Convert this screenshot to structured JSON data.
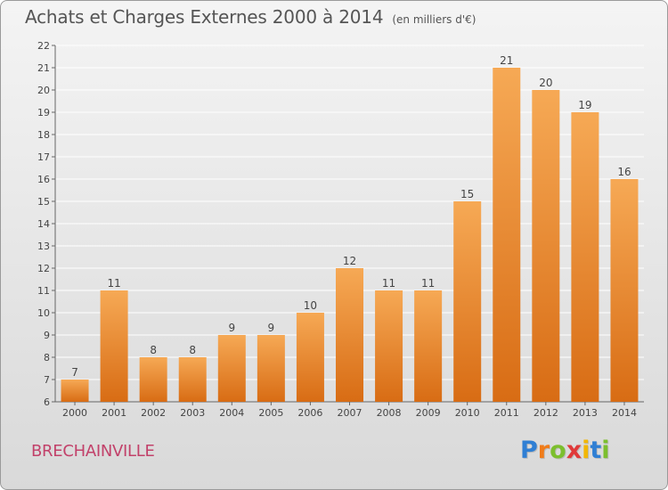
{
  "title": "Achats et Charges Externes 2000 à 2014",
  "unit": "(en milliers d'€)",
  "town": "BRECHAINVILLE",
  "logo": {
    "letters": [
      "P",
      "r",
      "o",
      "x",
      "i",
      "t",
      "i"
    ],
    "colors": [
      "#2f7fd4",
      "#f07c1a",
      "#7cbf2e",
      "#e03a3a",
      "#f2b705",
      "#2f7fd4",
      "#7cbf2e"
    ]
  },
  "colors": {
    "bar_light": "#f6a955",
    "bar_dark": "#d86c14",
    "grid": "#ffffff"
  },
  "chart_data": {
    "type": "bar",
    "categories": [
      "2000",
      "2001",
      "2002",
      "2003",
      "2004",
      "2005",
      "2006",
      "2007",
      "2008",
      "2009",
      "2010",
      "2011",
      "2012",
      "2013",
      "2014"
    ],
    "values": [
      7,
      11,
      8,
      8,
      9,
      9,
      10,
      12,
      11,
      11,
      15,
      21,
      20,
      19,
      16
    ],
    "data_labels": [
      "7",
      "11",
      "8",
      "8",
      "9",
      "9",
      "10",
      "12",
      "11",
      "11",
      "15",
      "21",
      "20",
      "19",
      "16"
    ],
    "ylim": [
      6,
      22
    ],
    "yticks": [
      6,
      7,
      8,
      9,
      10,
      11,
      12,
      13,
      14,
      15,
      16,
      17,
      18,
      19,
      20,
      21,
      22
    ],
    "ytick_labels": [
      "6",
      "7",
      "8",
      "9",
      "10",
      "11",
      "12",
      "13",
      "14",
      "15",
      "16",
      "17",
      "18",
      "19",
      "20",
      "21",
      "22"
    ],
    "xlabel": "",
    "ylabel": "",
    "grid": true
  }
}
